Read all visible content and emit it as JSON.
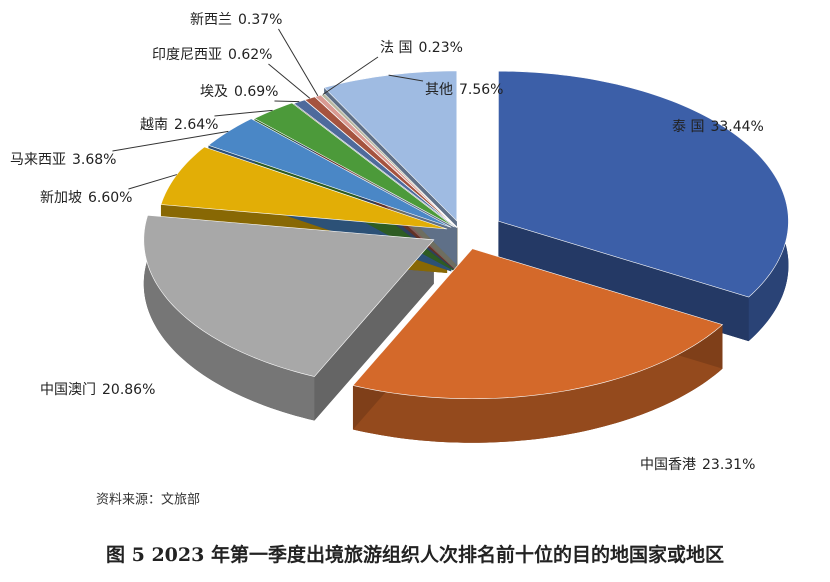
{
  "chart_data": {
    "type": "pie",
    "title": "图 5 2023 年第一季度出境旅游组织人次排名前十位的目的地国家或地区",
    "source": "资料来源：文旅部",
    "categories": [
      "泰 国",
      "中国香港",
      "中国澳门",
      "新加坡",
      "马来西亚",
      "越南",
      "埃及",
      "印度尼西亚",
      "新西兰",
      "法 国",
      "其他"
    ],
    "values": [
      33.44,
      23.31,
      20.86,
      6.6,
      3.68,
      2.64,
      0.69,
      0.62,
      0.37,
      0.23,
      7.56
    ],
    "value_labels": [
      "33.44%",
      "23.31%",
      "20.86%",
      "6.60%",
      "3.68%",
      "2.64%",
      "0.69%",
      "0.62%",
      "0.37%",
      "0.23%",
      "7.56%"
    ],
    "colors": [
      "#3c5fa8",
      "#d4692a",
      "#a8a8a8",
      "#e2ae06",
      "#4a87c6",
      "#4c9a3a",
      "#4e6a9c",
      "#a5533f",
      "#d99a92",
      "#b7b7a0",
      "#9fbbe2"
    ]
  }
}
